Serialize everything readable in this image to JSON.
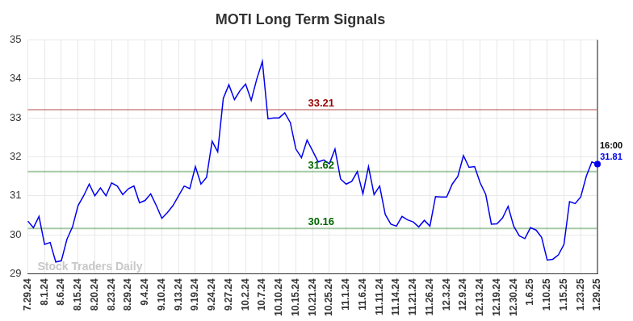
{
  "chart_data": {
    "type": "line",
    "title": "MOTI Long Term Signals",
    "watermark": "Stock Traders Daily",
    "categories": [
      "7.29.24",
      null,
      null,
      "8.1.24",
      null,
      null,
      "8.6.24",
      null,
      null,
      "8.15.24",
      null,
      null,
      "8.20.24",
      null,
      null,
      "8.23.24",
      null,
      null,
      "8.29.24",
      null,
      null,
      "9.4.24",
      null,
      null,
      "9.10.24",
      null,
      null,
      "9.13.24",
      null,
      null,
      "9.19.24",
      null,
      null,
      "9.24.24",
      null,
      null,
      "9.27.24",
      null,
      null,
      "10.2.24",
      null,
      null,
      "10.7.24",
      null,
      null,
      "10.10.24",
      null,
      null,
      "10.15.24",
      null,
      null,
      "10.21.24",
      null,
      null,
      "10.25.24",
      null,
      null,
      "11.1.24",
      null,
      null,
      "11.6.24",
      null,
      null,
      "11.11.24",
      null,
      null,
      "11.14.24",
      null,
      null,
      "11.21.24",
      null,
      null,
      "11.26.24",
      null,
      null,
      "12.3.24",
      null,
      null,
      "12.9.24",
      null,
      null,
      "12.13.24",
      null,
      null,
      "12.19.24",
      null,
      null,
      "12.30.24",
      null,
      null,
      "1.6.25",
      null,
      null,
      "1.10.25",
      null,
      null,
      "1.15.25",
      null,
      null,
      "1.23.25",
      null,
      null,
      "1.29.25"
    ],
    "values": [
      30.35,
      30.18,
      30.47,
      29.75,
      29.8,
      29.3,
      29.33,
      29.88,
      30.2,
      30.75,
      31.0,
      31.3,
      31.0,
      31.2,
      31.0,
      31.33,
      31.25,
      31.03,
      31.18,
      31.25,
      30.82,
      30.88,
      31.05,
      30.75,
      30.42,
      30.57,
      30.75,
      31.0,
      31.25,
      31.18,
      31.75,
      31.3,
      31.47,
      32.4,
      32.13,
      33.5,
      33.85,
      33.47,
      33.7,
      33.87,
      33.45,
      34.0,
      34.45,
      32.98,
      33.0,
      33.0,
      33.13,
      32.88,
      32.2,
      31.98,
      32.43,
      32.15,
      31.87,
      31.92,
      31.82,
      32.2,
      31.43,
      31.3,
      31.37,
      31.62,
      31.05,
      31.75,
      31.03,
      31.25,
      30.52,
      30.27,
      30.22,
      30.47,
      30.38,
      30.33,
      30.2,
      30.37,
      30.22,
      30.98,
      30.97,
      30.97,
      31.3,
      31.5,
      32.03,
      31.73,
      31.75,
      31.33,
      31.03,
      30.27,
      30.28,
      30.43,
      30.73,
      30.22,
      29.97,
      29.9,
      30.18,
      30.12,
      29.93,
      29.35,
      29.37,
      29.48,
      29.75,
      30.85,
      30.8,
      30.97,
      31.5,
      31.87,
      31.81
    ],
    "color": "#0000ee",
    "last_time": "16:00",
    "reference_lines": [
      {
        "value": 33.21,
        "color": "#990000"
      },
      {
        "value": 31.62,
        "color": "#006600"
      },
      {
        "value": 30.16,
        "color": "#006600"
      }
    ],
    "ylim": [
      29,
      35
    ],
    "yticks": [
      29,
      30,
      31,
      32,
      33,
      34,
      35
    ],
    "grid": true
  }
}
